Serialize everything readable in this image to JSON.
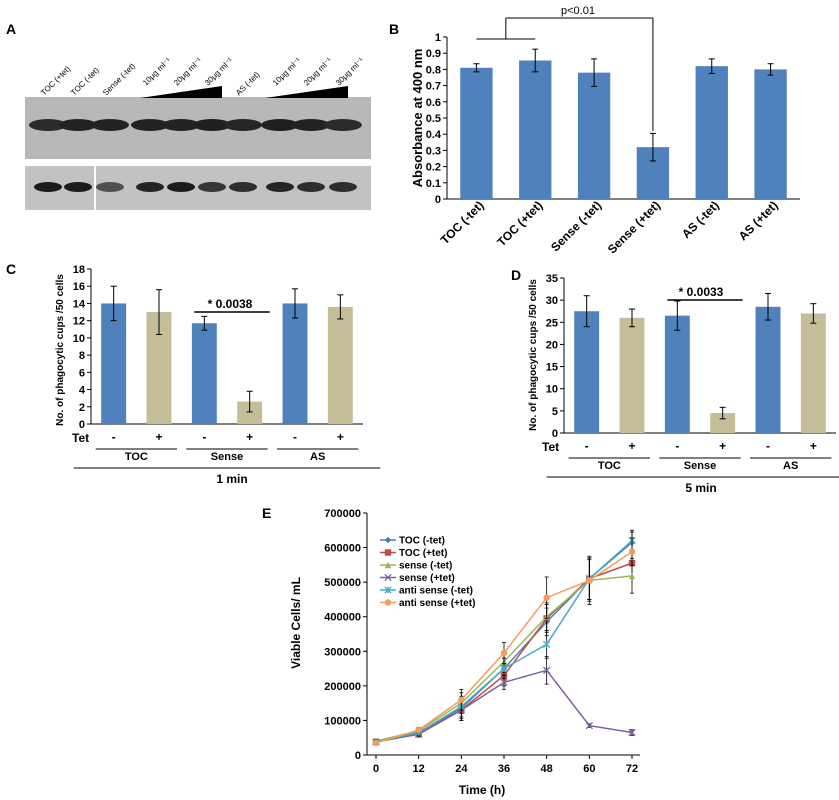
{
  "panel_letters": [
    "A",
    "B",
    "C",
    "D",
    "E"
  ],
  "blot": {
    "lane_labels": [
      "TOC (+tet)",
      "TOC (-tet)",
      "Sense (-tet)",
      "10μg ml⁻¹",
      "20μg ml⁻¹",
      "30μg ml⁻¹",
      "AS (-tet)",
      "10μg ml⁻¹",
      "20μg ml⁻¹",
      "30μg ml⁻¹"
    ],
    "top_band_intensity": [
      0.72,
      0.78,
      0.78,
      0.78,
      0.78,
      0.8,
      0.75,
      0.8,
      0.78,
      0.72
    ],
    "bottom_band_intensity": [
      0.85,
      0.85,
      0.55,
      0.8,
      0.85,
      0.7,
      0.75,
      0.8,
      0.75,
      0.75
    ]
  },
  "chart_data": [
    {
      "id": "B",
      "type": "bar",
      "ylabel": "Absorbance at 400 nm",
      "categories": [
        "TOC (-tet)",
        "TOC (+tet)",
        "Sense (-tet)",
        "Sense (+tet)",
        "AS (-tet)",
        "AS (+tet)"
      ],
      "values": [
        0.81,
        0.855,
        0.78,
        0.32,
        0.82,
        0.8
      ],
      "errors": [
        0.025,
        0.07,
        0.085,
        0.085,
        0.045,
        0.035
      ],
      "ylim": [
        0,
        1
      ],
      "yticks": [
        "0",
        "0.1",
        "0.2",
        "0.3",
        "0.4",
        "0.5",
        "0.6",
        "0.7",
        "0.8",
        "0.9",
        "1"
      ],
      "annotation": "p<0.01",
      "colors": [
        "#4f81bd",
        "#4f81bd",
        "#4f81bd",
        "#4f81bd",
        "#4f81bd",
        "#4f81bd"
      ]
    },
    {
      "id": "C",
      "type": "bar",
      "ylabel": "No. of phagocytic cups /50 cells",
      "values": [
        14.0,
        13.0,
        11.7,
        2.6,
        14.0,
        13.6
      ],
      "errors": [
        2.0,
        2.6,
        0.8,
        1.2,
        1.7,
        1.4
      ],
      "ylim": [
        0,
        18
      ],
      "yticks": [
        "0",
        "2",
        "4",
        "6",
        "8",
        "10",
        "12",
        "14",
        "16",
        "18"
      ],
      "tet_label": "Tet",
      "tet_signs": [
        "-",
        "+",
        "-",
        "+",
        "-",
        "+"
      ],
      "groups": [
        "TOC",
        "Sense",
        "AS"
      ],
      "time": "1 min",
      "annotation": "* 0.0038",
      "colors": [
        "#4f81bd",
        "#c4bd97",
        "#4f81bd",
        "#c4bd97",
        "#4f81bd",
        "#c4bd97"
      ]
    },
    {
      "id": "D",
      "type": "bar",
      "ylabel": "No. of phagocytic cups /50 cells",
      "values": [
        27.5,
        26.0,
        26.5,
        4.5,
        28.5,
        27.0
      ],
      "errors": [
        3.5,
        2.0,
        3.3,
        1.3,
        3.0,
        2.2
      ],
      "ylim": [
        0,
        35
      ],
      "yticks": [
        "0",
        "5",
        "10",
        "15",
        "20",
        "25",
        "30",
        "35"
      ],
      "tet_label": "Tet",
      "tet_signs": [
        "-",
        "+",
        "-",
        "+",
        "-",
        "+"
      ],
      "groups": [
        "TOC",
        "Sense",
        "AS"
      ],
      "time": "5 min",
      "annotation": "* 0.0033",
      "colors": [
        "#4f81bd",
        "#c4bd97",
        "#4f81bd",
        "#c4bd97",
        "#4f81bd",
        "#c4bd97"
      ]
    },
    {
      "id": "E",
      "type": "line",
      "xlabel": "Time (h)",
      "ylabel": "Viable Cells/ mL",
      "x": [
        0,
        12,
        24,
        36,
        48,
        60,
        72
      ],
      "xticks": [
        "0",
        "12",
        "24",
        "36",
        "48",
        "60",
        "72"
      ],
      "ylim": [
        0,
        700000
      ],
      "yticks": [
        "0",
        "100000",
        "200000",
        "300000",
        "400000",
        "500000",
        "600000",
        "700000"
      ],
      "series": [
        {
          "name": "TOC (-tet)",
          "color": "#4a7ebb",
          "marker": "diamond",
          "values": [
            40000,
            65000,
            135000,
            250000,
            385000,
            510000,
            615000
          ],
          "errors": [
            5000,
            8000,
            30000,
            30000,
            40000,
            60000,
            30000
          ]
        },
        {
          "name": "TOC (+tet)",
          "color": "#be4b48",
          "marker": "square",
          "values": [
            38000,
            62000,
            130000,
            230000,
            395000,
            510000,
            555000
          ],
          "errors": [
            5000,
            8000,
            30000,
            30000,
            40000,
            60000,
            40000
          ]
        },
        {
          "name": "sense (-tet)",
          "color": "#98b954",
          "marker": "triangle",
          "values": [
            40000,
            70000,
            150000,
            270000,
            400000,
            505000,
            518000
          ],
          "errors": [
            5000,
            8000,
            30000,
            30000,
            40000,
            70000,
            50000
          ]
        },
        {
          "name": "sense (+tet)",
          "color": "#7d60a0",
          "marker": "x",
          "values": [
            38000,
            60000,
            130000,
            210000,
            245000,
            85000,
            65000
          ],
          "errors": [
            5000,
            8000,
            30000,
            20000,
            40000,
            5000,
            8000
          ]
        },
        {
          "name": "anti sense (-tet)",
          "color": "#46aac5",
          "marker": "star",
          "values": [
            38000,
            65000,
            140000,
            250000,
            320000,
            510000,
            620000
          ],
          "errors": [
            5000,
            8000,
            30000,
            30000,
            40000,
            60000,
            30000
          ]
        },
        {
          "name": "anti sense (+tet)",
          "color": "#f59d56",
          "marker": "circle",
          "values": [
            35000,
            72000,
            160000,
            295000,
            455000,
            505000,
            588000
          ],
          "errors": [
            5000,
            8000,
            30000,
            30000,
            60000,
            60000,
            40000
          ]
        }
      ]
    }
  ]
}
